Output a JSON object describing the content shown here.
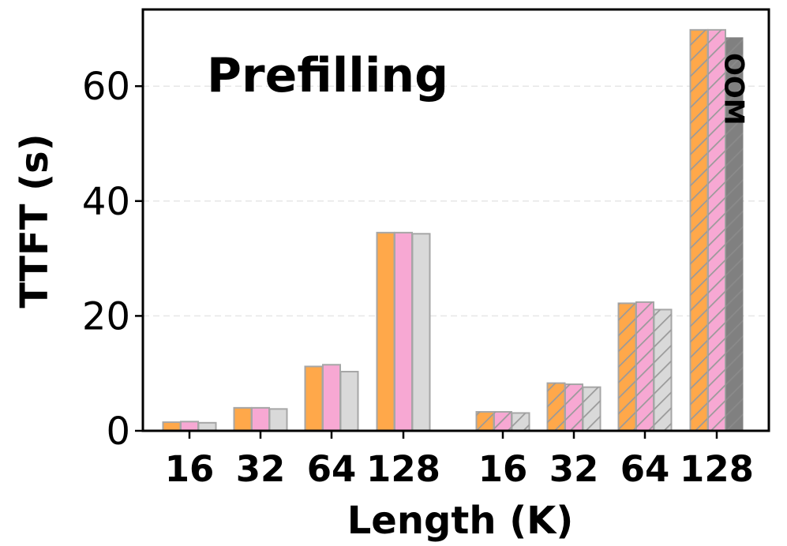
{
  "chart_data": {
    "type": "bar",
    "title": "",
    "annotation": "Prefilling",
    "xlabel": "Length (K)",
    "ylabel": "TTFT (s)",
    "ylim": [
      0,
      73
    ],
    "yticks": [
      0,
      20,
      40,
      60
    ],
    "grid": true,
    "groups": [
      {
        "categories": [
          "16",
          "32",
          "64",
          "128"
        ],
        "hatched": false
      },
      {
        "categories": [
          "16",
          "32",
          "64",
          "128"
        ],
        "hatched": true
      }
    ],
    "series": [
      {
        "color": "#FFA84A",
        "values": [
          1.5,
          4.0,
          11.2,
          34.5,
          3.3,
          8.3,
          22.2,
          69.8
        ]
      },
      {
        "color": "#F7A8D3",
        "values": [
          1.6,
          4.0,
          11.5,
          34.5,
          3.3,
          8.1,
          22.4,
          69.8
        ]
      },
      {
        "color": "#D9D9D9",
        "values": [
          1.4,
          3.8,
          10.3,
          34.3,
          3.1,
          7.6,
          21.1,
          null
        ]
      }
    ],
    "oom": {
      "label": "OOM",
      "color": "#808080",
      "display_value": 68.5
    }
  }
}
